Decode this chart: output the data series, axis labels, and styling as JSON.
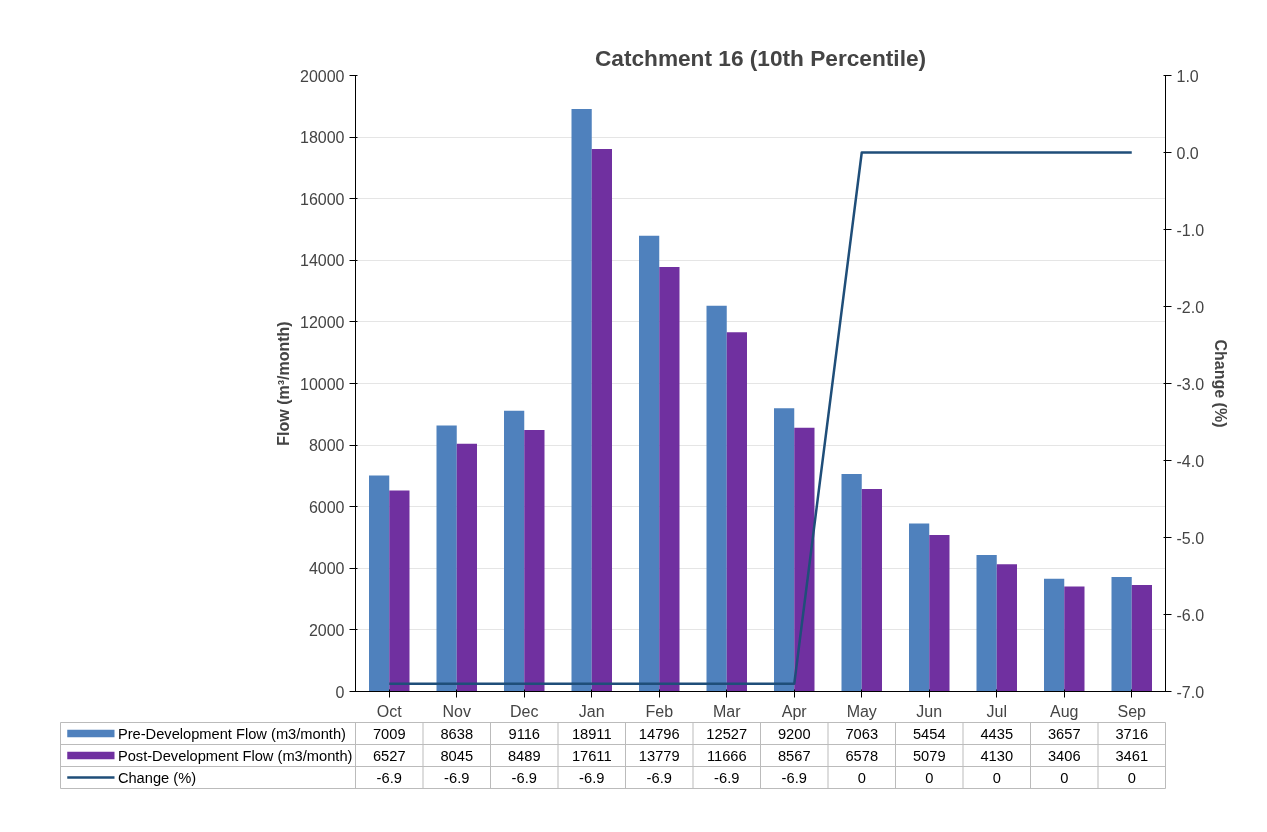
{
  "chart_data": {
    "type": "bar",
    "title": "Catchment 16 (10th Percentile)",
    "ylabel": "Flow (m³/month)",
    "y2label": "Change (%)",
    "categories": [
      "Oct",
      "Nov",
      "Dec",
      "Jan",
      "Feb",
      "Mar",
      "Apr",
      "May",
      "Jun",
      "Jul",
      "Aug",
      "Sep"
    ],
    "series": [
      {
        "name": "Pre-Development Flow (m3/month)",
        "color": "#4f81bd",
        "values": [
          7009,
          8638,
          9116,
          18911,
          14796,
          12527,
          9200,
          7063,
          5454,
          4435,
          3657,
          3716
        ]
      },
      {
        "name": "Post-Development Flow (m3/month)",
        "color": "#7030a0",
        "values": [
          6527,
          8045,
          8489,
          17611,
          13779,
          11666,
          8567,
          6578,
          5079,
          4130,
          3406,
          3461
        ]
      },
      {
        "name": "Change (%)",
        "type": "line",
        "axis": "y2",
        "color": "#1f4e79",
        "values": [
          -6.9,
          -6.9,
          -6.9,
          -6.9,
          -6.9,
          -6.9,
          -6.9,
          0,
          0,
          0,
          0,
          0
        ]
      }
    ],
    "ylim": [
      0,
      20000
    ],
    "yticks": [
      0,
      2000,
      4000,
      6000,
      8000,
      10000,
      12000,
      14000,
      16000,
      18000,
      20000
    ],
    "y2lim": [
      -7,
      1
    ],
    "y2ticks": [
      {
        "value": -7,
        "label": "-7.0"
      },
      {
        "value": -6,
        "label": "-6.0"
      },
      {
        "value": -5,
        "label": "-5.0"
      },
      {
        "value": -4,
        "label": "-4.0"
      },
      {
        "value": -3,
        "label": "-3.0"
      },
      {
        "value": -2,
        "label": "-2.0"
      },
      {
        "value": -1,
        "label": "-1.0"
      },
      {
        "value": 0,
        "label": "0.0"
      },
      {
        "value": 1,
        "label": "1.0"
      }
    ],
    "grid": "y",
    "data_labels": true,
    "legend": "bottom"
  }
}
